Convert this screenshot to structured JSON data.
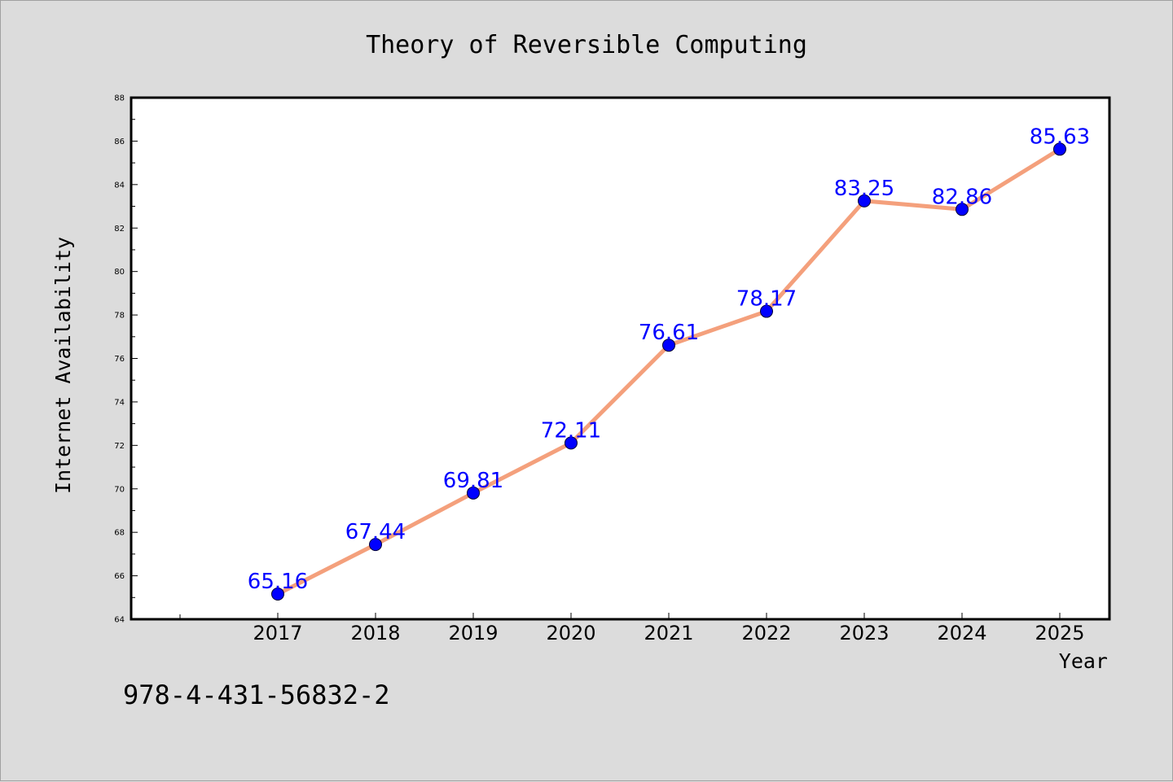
{
  "chart_data": {
    "type": "line",
    "title": "Theory of Reversible Computing",
    "xlabel": "Year",
    "ylabel": "Internet Availability",
    "categories": [
      "2017",
      "2018",
      "2019",
      "2020",
      "2021",
      "2022",
      "2023",
      "2024",
      "2025"
    ],
    "series": [
      {
        "values": [
          65.16,
          67.44,
          69.81,
          72.11,
          76.61,
          78.17,
          83.25,
          82.86,
          85.63
        ]
      }
    ],
    "data_labels": [
      "65.16",
      "67.44",
      "69.81",
      "72.11",
      "76.61",
      "78.17",
      "83.25",
      "82.86",
      "85.63"
    ],
    "ylim": [
      64,
      88
    ],
    "yticks": [
      "64",
      "66",
      "68",
      "70",
      "72",
      "74",
      "76",
      "78",
      "80",
      "82",
      "84",
      "86",
      "88"
    ],
    "grid": false,
    "legend": "none",
    "colors": {
      "line": "#f4a07c",
      "marker": "#0000ff",
      "data_label": "#0000ff",
      "plot_background": "#ffffff",
      "page_background": "#dcdcdc"
    }
  },
  "footer": {
    "isbn": "978-4-431-56832-2"
  }
}
